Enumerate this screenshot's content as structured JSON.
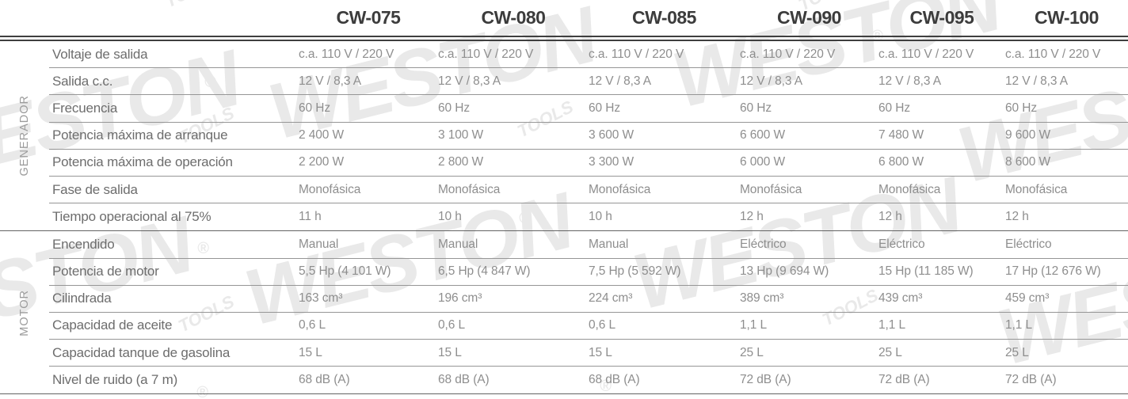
{
  "table": {
    "columns": [
      "CW-075",
      "CW-080",
      "CW-085",
      "CW-090",
      "CW-095",
      "CW-100"
    ],
    "sections": [
      {
        "label": "GENERADOR",
        "rows": [
          {
            "label": "Voltaje de salida",
            "values": [
              "c.a. 110 V / 220 V",
              "c.a. 110 V / 220 V",
              "c.a. 110 V / 220 V",
              "c.a. 110 V / 220 V",
              "c.a. 110 V / 220 V",
              "c.a. 110 V / 220 V"
            ]
          },
          {
            "label": "Salida c.c.",
            "values": [
              "12 V / 8,3 A",
              "12 V / 8,3 A",
              "12 V / 8,3 A",
              "12 V / 8,3 A",
              "12 V / 8,3 A",
              "12 V / 8,3 A"
            ]
          },
          {
            "label": "Frecuencia",
            "values": [
              "60 Hz",
              "60 Hz",
              "60 Hz",
              "60 Hz",
              "60 Hz",
              "60 Hz"
            ]
          },
          {
            "label": "Potencia máxima de arranque",
            "values": [
              "2 400 W",
              "3 100 W",
              "3 600 W",
              "6 600 W",
              "7 480 W",
              "9 600 W"
            ]
          },
          {
            "label": "Potencia máxima de operación",
            "values": [
              "2 200 W",
              "2 800 W",
              "3 300 W",
              "6 000 W",
              "6 800 W",
              "8 600 W"
            ]
          },
          {
            "label": "Fase de salida",
            "values": [
              "Monofásica",
              "Monofásica",
              "Monofásica",
              "Monofásica",
              "Monofásica",
              "Monofásica"
            ]
          },
          {
            "label": "Tiempo operacional al 75%",
            "values": [
              "11 h",
              "10 h",
              "10 h",
              "12 h",
              "12 h",
              "12 h"
            ]
          }
        ]
      },
      {
        "label": "MOTOR",
        "rows": [
          {
            "label": "Encendido",
            "values": [
              "Manual",
              "Manual",
              "Manual",
              "Eléctrico",
              "Eléctrico",
              "Eléctrico"
            ]
          },
          {
            "label": "Potencia de motor",
            "values": [
              "5,5 Hp (4 101 W)",
              "6,5 Hp (4 847 W)",
              "7,5 Hp (5 592 W)",
              "13 Hp (9 694 W)",
              "15 Hp (11 185 W)",
              "17 Hp (12 676 W)"
            ]
          },
          {
            "label": "Cilindrada",
            "values": [
              "163 cm³",
              "196 cm³",
              "224 cm³",
              "389 cm³",
              "439 cm³",
              "459 cm³"
            ]
          },
          {
            "label": "Capacidad de aceite",
            "values": [
              "0,6 L",
              "0,6 L",
              "0,6 L",
              "1,1 L",
              "1,1 L",
              "1,1 L"
            ]
          },
          {
            "label": "Capacidad tanque de gasolina",
            "values": [
              "15 L",
              "15 L",
              "15 L",
              "25 L",
              "25 L",
              "25 L"
            ]
          },
          {
            "label": "Nivel de ruido (a 7 m)",
            "values": [
              "68 dB (A)",
              "68 dB (A)",
              "68 dB (A)",
              "72 dB (A)",
              "72 dB (A)",
              "72 dB (A)"
            ]
          }
        ]
      }
    ]
  },
  "watermark": {
    "brand": "WESTON",
    "sub": "TOOLS",
    "reg": "®",
    "color": "#e9e9e9"
  }
}
